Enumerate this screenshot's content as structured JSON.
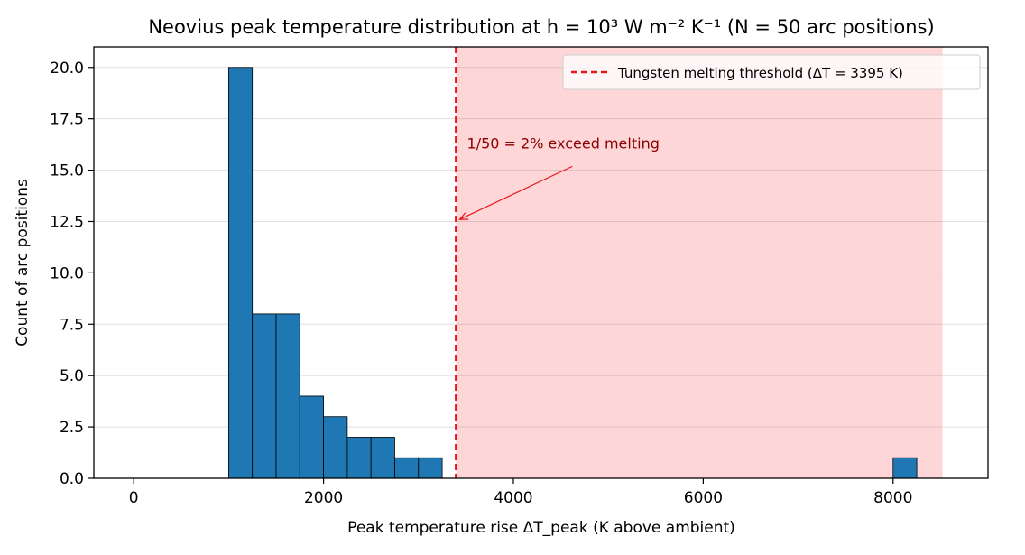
{
  "chart_data": {
    "type": "bar",
    "title": "Neovius peak temperature distribution at h = 10³ W m⁻² K⁻¹  (N = 50 arc positions)",
    "xlabel": "Peak temperature rise ΔT_peak (K above ambient)",
    "ylabel": "Count of arc positions",
    "xlim": [
      -420,
      9000
    ],
    "ylim": [
      0,
      21
    ],
    "xticks": [
      0,
      2000,
      4000,
      6000,
      8000
    ],
    "xtick_labels": [
      "0",
      "2000",
      "4000",
      "6000",
      "8000"
    ],
    "yticks": [
      0,
      2.5,
      5,
      7.5,
      10,
      12.5,
      15,
      17.5,
      20
    ],
    "ytick_labels": [
      "0.0",
      "2.5",
      "5.0",
      "7.5",
      "10.0",
      "12.5",
      "15.0",
      "17.5",
      "20.0"
    ],
    "bin_width": 250,
    "bins": [
      {
        "x0": 1000,
        "count": 20
      },
      {
        "x0": 1250,
        "count": 8
      },
      {
        "x0": 1500,
        "count": 8
      },
      {
        "x0": 1750,
        "count": 4
      },
      {
        "x0": 2000,
        "count": 3
      },
      {
        "x0": 2250,
        "count": 2
      },
      {
        "x0": 2500,
        "count": 2
      },
      {
        "x0": 2750,
        "count": 1
      },
      {
        "x0": 3000,
        "count": 1
      },
      {
        "x0": 8000,
        "count": 1
      }
    ],
    "threshold": {
      "value": 3395,
      "label": "Tungsten melting threshold (ΔT = 3395 K)",
      "color": "#e8161b"
    },
    "shaded_region": {
      "x0": 3395,
      "x1": 8520,
      "color": "#ffd6d8"
    },
    "annotation": {
      "text": "1/50 = 2% exceed melting",
      "text_x": 5000,
      "text_y": 15.8,
      "arrow_x": 3395,
      "arrow_y": 12.6,
      "color": "#8b0000"
    },
    "bar_color": "#1f77b4",
    "grid": "y",
    "legend_position": "top-right"
  }
}
